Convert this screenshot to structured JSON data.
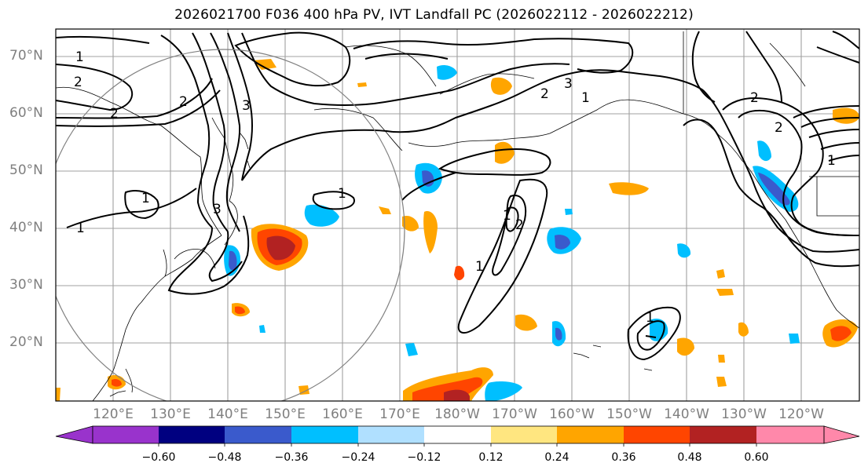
{
  "title": "2026021700 F036 400 hPa PV, IVT Landfall PC (2026022112 - 2026022212)",
  "map": {
    "lat_labels": [
      "70°N",
      "60°N",
      "50°N",
      "40°N",
      "30°N",
      "20°N"
    ],
    "lon_labels": [
      "120°E",
      "130°E",
      "140°E",
      "150°E",
      "160°E",
      "170°E",
      "180°W",
      "170°W",
      "160°W",
      "150°W",
      "140°W",
      "130°W",
      "120°W"
    ],
    "contour_labels": [
      "1",
      "2",
      "3",
      "1",
      "2",
      "1",
      "2",
      "3",
      "1",
      "1",
      "2",
      "1",
      "1",
      "1",
      "2",
      "2",
      "1",
      "2",
      "3"
    ],
    "grid_color": "#a0a0a0",
    "coastline_color": "#000000",
    "circle_color": "#808080"
  },
  "colorbar": {
    "ticks": [
      "−0.60",
      "−0.48",
      "−0.36",
      "−0.24",
      "−0.12",
      "0.12",
      "0.24",
      "0.36",
      "0.48",
      "0.60"
    ],
    "colors": [
      "#9933cc",
      "#000080",
      "#3a5acc",
      "#00bfff",
      "#b0e0ff",
      "#ffffff",
      "#ffe680",
      "#ffa500",
      "#ff4500",
      "#b22222",
      "#ff88aa"
    ]
  }
}
